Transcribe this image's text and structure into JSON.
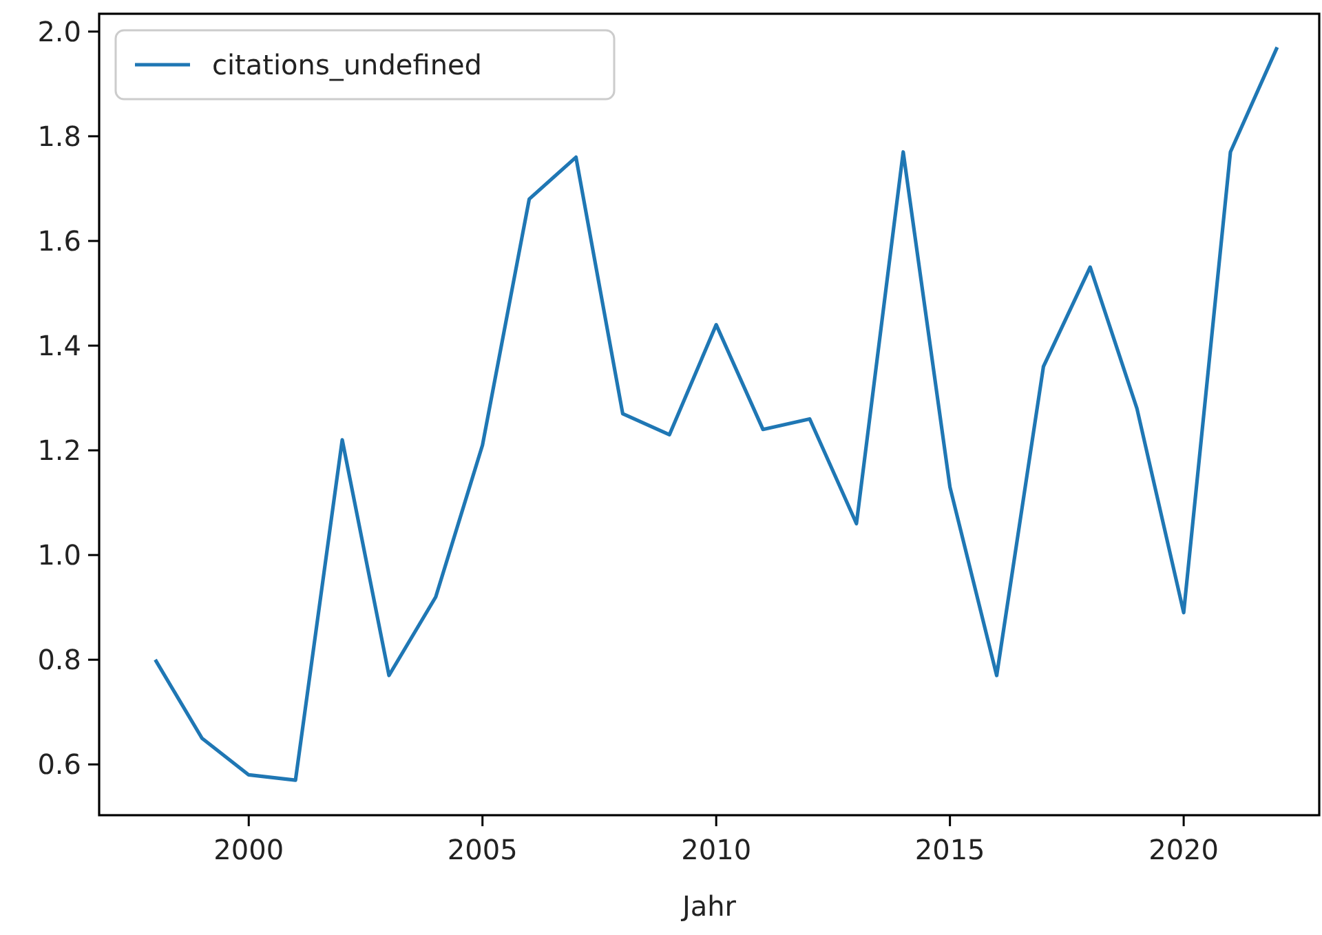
{
  "chart_data": {
    "type": "line",
    "xlabel": "Jahr",
    "x": [
      1998,
      1999,
      2000,
      2001,
      2002,
      2003,
      2004,
      2005,
      2006,
      2007,
      2008,
      2009,
      2010,
      2011,
      2012,
      2013,
      2014,
      2015,
      2016,
      2017,
      2018,
      2019,
      2020,
      2021,
      2022
    ],
    "series": [
      {
        "name": "citations_undefined",
        "color": "#1f77b4",
        "values": [
          0.8,
          0.65,
          0.58,
          0.57,
          1.22,
          0.77,
          0.92,
          1.21,
          1.68,
          1.76,
          1.27,
          1.23,
          1.44,
          1.24,
          1.26,
          1.06,
          1.77,
          1.13,
          0.77,
          1.36,
          1.55,
          1.28,
          0.89,
          1.77,
          1.97
        ]
      }
    ],
    "xlim": [
      1996.8,
      2022.9
    ],
    "xticks": [
      2000,
      2005,
      2010,
      2015,
      2020
    ],
    "ylim": [
      0.503,
      2.034
    ],
    "yticks": [
      {
        "value": 0.6,
        "label": "0.6"
      },
      {
        "value": 0.8,
        "label": "0.8"
      },
      {
        "value": 1.0,
        "label": "1.0"
      },
      {
        "value": 1.2,
        "label": "1.2"
      },
      {
        "value": 1.4,
        "label": "1.4"
      },
      {
        "value": 1.6,
        "label": "1.6"
      },
      {
        "value": 1.8,
        "label": "1.8"
      },
      {
        "value": 2.0,
        "label": "2.0"
      }
    ],
    "grid": false,
    "legend": "top left",
    "marker": "none",
    "line_style": "solid"
  }
}
